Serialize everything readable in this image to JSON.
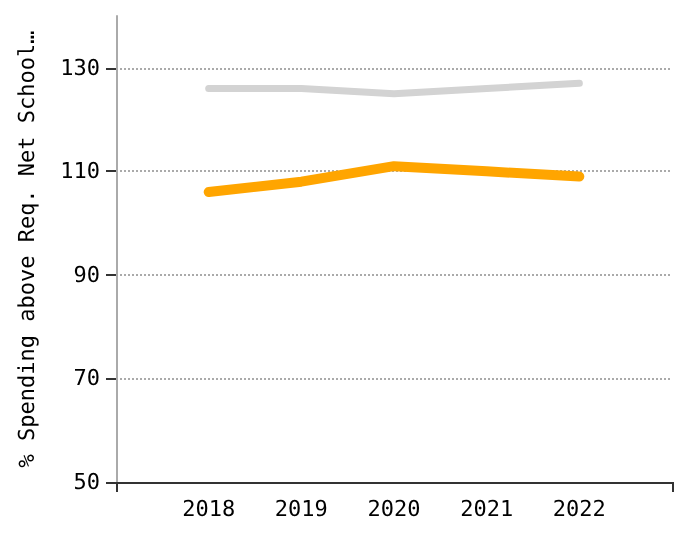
{
  "chart_data": {
    "type": "line",
    "ylabel": "% Spending above Req. Net School…",
    "x": [
      2018,
      2019,
      2020,
      2021,
      2022
    ],
    "series": [
      {
        "color": "#d3d3d3",
        "values": [
          126,
          126,
          125,
          126,
          127
        ]
      },
      {
        "color": "#ffa500",
        "values": [
          106,
          108,
          111,
          110,
          109
        ]
      }
    ],
    "xlim": [
      2017,
      2023
    ],
    "xticks": [
      {
        "value": 2017,
        "label": null
      },
      2018,
      2019,
      2020,
      2021,
      2022,
      {
        "value": 2023,
        "label": null
      }
    ],
    "ylim": [
      50,
      140
    ],
    "yticks": [
      50,
      70,
      90,
      110,
      130
    ],
    "grid": "y",
    "marker": "none",
    "line_style": "solid"
  }
}
